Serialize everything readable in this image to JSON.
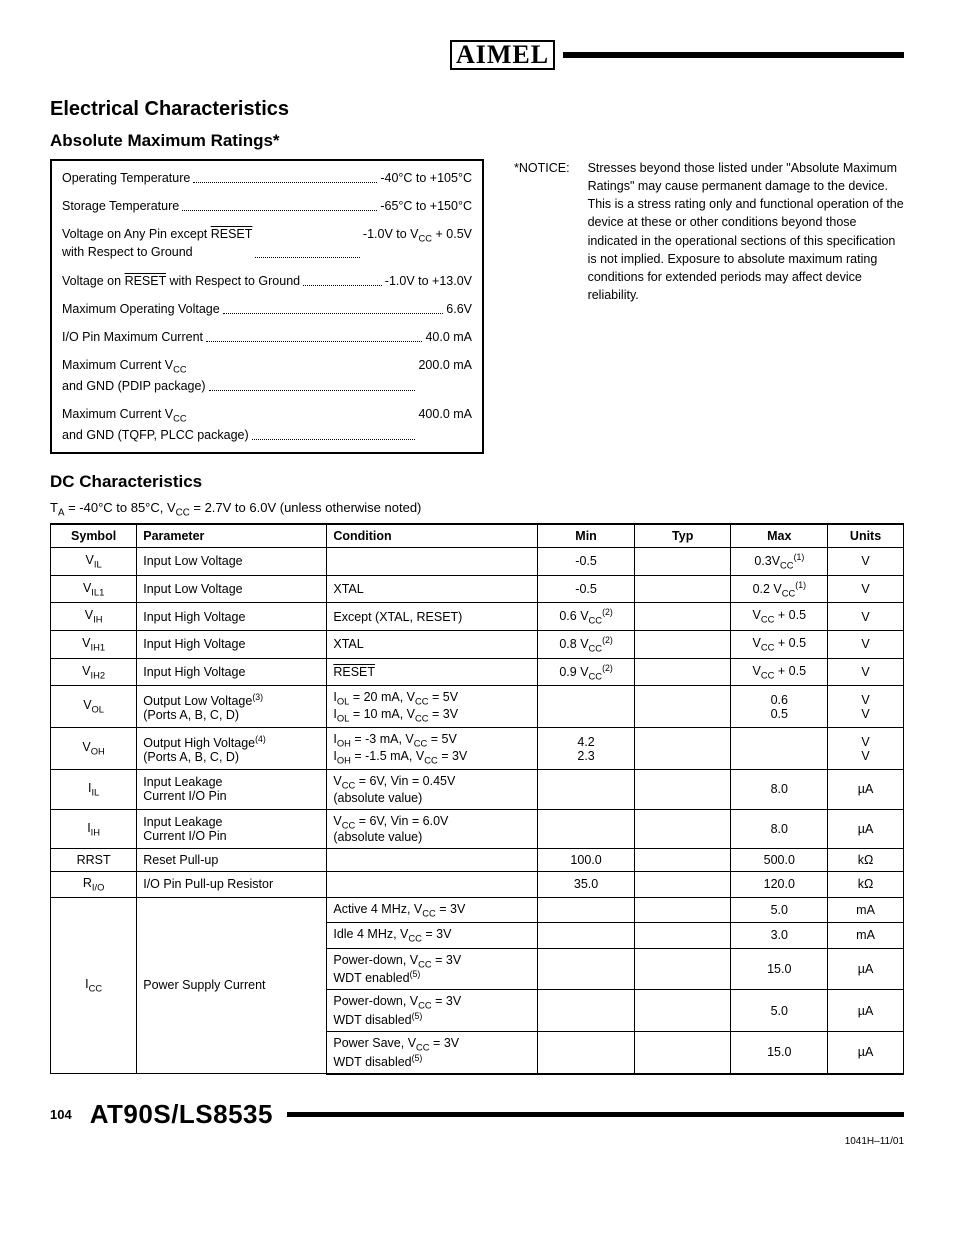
{
  "logo_text": "AIMEL",
  "section_title": "Electrical Characteristics",
  "amr_title": "Absolute Maximum Ratings*",
  "amr_rows": [
    {
      "label": "Operating Temperature",
      "value": "-40°C to +105°C"
    },
    {
      "label": "Storage Temperature",
      "value": "-65°C to +150°C"
    },
    {
      "label_html": "Voltage on Any Pin except <span class=\"overline\">RESET</span><br>with Respect to Ground",
      "value_html": "-1.0V to V<sub>CC</sub> + 0.5V"
    },
    {
      "label_html": "Voltage on <span class=\"overline\">RESET</span> with Respect to Ground",
      "value": "-1.0V to +13.0V"
    },
    {
      "label": "Maximum Operating Voltage",
      "value": "6.6V"
    },
    {
      "label": "I/O Pin Maximum Current",
      "value": "40.0 mA"
    },
    {
      "label_html": "Maximum Current V<sub>CC</sub><br>and GND (PDIP package)",
      "value": "200.0 mA"
    },
    {
      "label_html": "Maximum Current V<sub>CC</sub><br>and GND (TQFP, PLCC package)",
      "value": "400.0 mA"
    }
  ],
  "notice_label": "*NOTICE:",
  "notice_text": "Stresses beyond those listed under \"Absolute Maximum Ratings\" may cause permanent damage to the device. This is a stress rating only and functional operation of the device at these or other conditions beyond those indicated in the operational sections of this specification is not implied. Exposure to absolute maximum rating conditions for extended periods may affect device reliability.",
  "dc_title": "DC Characteristics",
  "dc_condition_html": "T<sub>A</sub> = -40°C to 85°C, V<sub>CC</sub> = 2.7V to 6.0V (unless otherwise noted)",
  "dc_headers": [
    "Symbol",
    "Parameter",
    "Condition",
    "Min",
    "Typ",
    "Max",
    "Units"
  ],
  "dc_rows": [
    {
      "sym_html": "V<sub>IL</sub>",
      "param": "Input Low Voltage",
      "cond": "",
      "min": "-0.5",
      "typ": "",
      "max_html": "0.3V<sub>CC</sub><sup>(1)</sup>",
      "units": "V"
    },
    {
      "sym_html": "V<sub>IL1</sub>",
      "param": "Input Low Voltage",
      "cond": "XTAL",
      "min": "-0.5",
      "typ": "",
      "max_html": "0.2 V<sub>CC</sub><sup>(1)</sup>",
      "units": "V"
    },
    {
      "sym_html": "V<sub>IH</sub>",
      "param": "Input High Voltage",
      "cond": "Except (XTAL, RESET)",
      "min_html": "0.6 V<sub>CC</sub><sup>(2)</sup>",
      "typ": "",
      "max_html": "V<sub>CC</sub> + 0.5",
      "units": "V"
    },
    {
      "sym_html": "V<sub>IH1</sub>",
      "param": "Input High Voltage",
      "cond": "XTAL",
      "min_html": "0.8 V<sub>CC</sub><sup>(2)</sup>",
      "typ": "",
      "max_html": "V<sub>CC</sub> + 0.5",
      "units": "V"
    },
    {
      "sym_html": "V<sub>IH2</sub>",
      "param": "Input High Voltage",
      "cond_html": "<span class=\"overline\">RESET</span>",
      "min_html": "0.9 V<sub>CC</sub><sup>(2)</sup>",
      "typ": "",
      "max_html": "V<sub>CC</sub> + 0.5",
      "units": "V"
    },
    {
      "sym_html": "V<sub>OL</sub>",
      "param_html": "Output Low Voltage<sup>(3)</sup><br>(Ports A, B, C, D)",
      "cond_html": "I<sub>OL</sub> = 20 mA, V<sub>CC</sub> = 5V<br>I<sub>OL</sub> = 10 mA, V<sub>CC</sub> = 3V",
      "min": "",
      "typ": "",
      "max": "0.6<br>0.5",
      "units": "V<br>V"
    },
    {
      "sym_html": "V<sub>OH</sub>",
      "param_html": "Output High Voltage<sup>(4)</sup><br>(Ports A, B, C, D)",
      "cond_html": "I<sub>OH</sub> = -3 mA, V<sub>CC</sub> = 5V<br>I<sub>OH</sub> = -1.5 mA, V<sub>CC</sub> = 3V",
      "min": "4.2<br>2.3",
      "typ": "",
      "max": "",
      "units": "V<br>V"
    },
    {
      "sym_html": "I<sub>IL</sub>",
      "param_html": "Input Leakage<br>Current I/O Pin",
      "cond_html": "V<sub>CC</sub> = 6V, Vin = 0.45V<br>(absolute value)",
      "min": "",
      "typ": "",
      "max": "8.0",
      "units": "µA"
    },
    {
      "sym_html": "I<sub>IH</sub>",
      "param_html": "Input Leakage<br>Current I/O Pin",
      "cond_html": "V<sub>CC</sub> = 6V, Vin = 6.0V<br>(absolute value)",
      "min": "",
      "typ": "",
      "max": "8.0",
      "units": "µA"
    },
    {
      "sym": "RRST",
      "param": "Reset Pull-up",
      "cond": "",
      "min": "100.0",
      "typ": "",
      "max": "500.0",
      "units": "kΩ"
    },
    {
      "sym_html": "R<sub>I/O</sub>",
      "param": "I/O Pin Pull-up Resistor",
      "cond": "",
      "min": "35.0",
      "typ": "",
      "max": "120.0",
      "units": "kΩ"
    }
  ],
  "icc_symbol_html": "I<sub>CC</sub>",
  "icc_param": "Power Supply Current",
  "icc_rows": [
    {
      "cond_html": "Active 4 MHz, V<sub>CC</sub> = 3V",
      "min": "",
      "typ": "",
      "max": "5.0",
      "units": "mA"
    },
    {
      "cond_html": "Idle 4 MHz, V<sub>CC</sub> = 3V",
      "min": "",
      "typ": "",
      "max": "3.0",
      "units": "mA"
    },
    {
      "cond_html": "Power-down, V<sub>CC</sub> = 3V<br>WDT enabled<sup>(5)</sup>",
      "min": "",
      "typ": "",
      "max": "15.0",
      "units": "µA"
    },
    {
      "cond_html": "Power-down, V<sub>CC</sub> = 3V<br>WDT disabled<sup>(5)</sup>",
      "min": "",
      "typ": "",
      "max": "5.0",
      "units": "µA"
    },
    {
      "cond_html": "Power Save, V<sub>CC</sub> = 3V<br>WDT disabled<sup>(5)</sup>",
      "min": "",
      "typ": "",
      "max": "15.0",
      "units": "µA"
    }
  ],
  "page_num": "104",
  "part_num": "AT90S/LS8535",
  "doc_id": "1041H–11/01"
}
